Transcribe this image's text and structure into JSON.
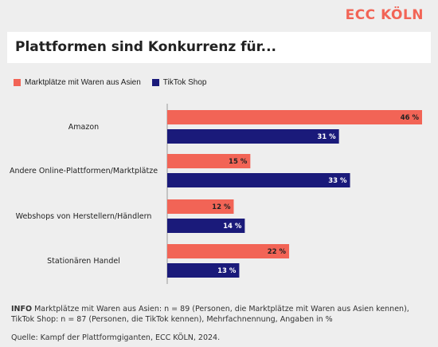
{
  "brand": "ECC KÖLN",
  "title": "Plattformen sind Konkurrenz für...",
  "colors": {
    "series1": "#f26456",
    "series2": "#1a1a7a",
    "brand": "#f26456"
  },
  "chart_data": {
    "type": "bar",
    "orientation": "horizontal",
    "categories": [
      "Amazon",
      "Andere Online-Plattformen/Marktplätze",
      "Webshops von Herstellern/Händlern",
      "Stationären Handel"
    ],
    "series": [
      {
        "name": "Marktplätze mit Waren aus Asien",
        "values": [
          46,
          15,
          12,
          22
        ],
        "labels": [
          "46 %",
          "15 %",
          "12 %",
          "22 %"
        ]
      },
      {
        "name": "TikTok Shop",
        "values": [
          31,
          33,
          14,
          13
        ],
        "labels": [
          "31 %",
          "33 %",
          "14 %",
          "13 %"
        ]
      }
    ],
    "xlim": [
      0,
      46
    ],
    "legend_position": "top-left",
    "grid": false
  },
  "info": {
    "label": "INFO",
    "text": "Marktplätze mit Waren aus Asien: n = 89 (Personen, die Marktplätze mit Waren aus Asien kennen), TikTok Shop: n = 87 (Personen, die TikTok kennen), Mehrfachnennung, Angaben in %"
  },
  "source": "Quelle: Kampf der Plattformgiganten, ECC KÖLN, 2024."
}
